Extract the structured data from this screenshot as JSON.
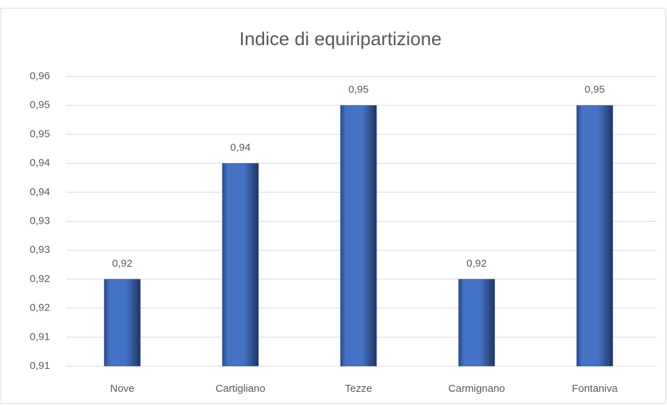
{
  "chart_data": {
    "type": "bar",
    "title": "Indice di equiripartizione",
    "categories": [
      "Nove",
      "Cartigliano",
      "Tezze",
      "Carmignano",
      "Fontaniva"
    ],
    "values": [
      0.92,
      0.94,
      0.95,
      0.92,
      0.95
    ],
    "value_labels": [
      "0,92",
      "0,94",
      "0,95",
      "0,92",
      "0,95"
    ],
    "color": "#4472c4",
    "ylim": [
      0.905,
      0.955
    ],
    "yticks": [
      {
        "value": 0.905,
        "label": "0,91"
      },
      {
        "value": 0.91,
        "label": "0,91"
      },
      {
        "value": 0.915,
        "label": "0,92"
      },
      {
        "value": 0.92,
        "label": "0,92"
      },
      {
        "value": 0.925,
        "label": "0,93"
      },
      {
        "value": 0.93,
        "label": "0,93"
      },
      {
        "value": 0.935,
        "label": "0,94"
      },
      {
        "value": 0.94,
        "label": "0,94"
      },
      {
        "value": 0.945,
        "label": "0,95"
      },
      {
        "value": 0.95,
        "label": "0,95"
      },
      {
        "value": 0.955,
        "label": "0,96"
      }
    ],
    "grid": true
  }
}
